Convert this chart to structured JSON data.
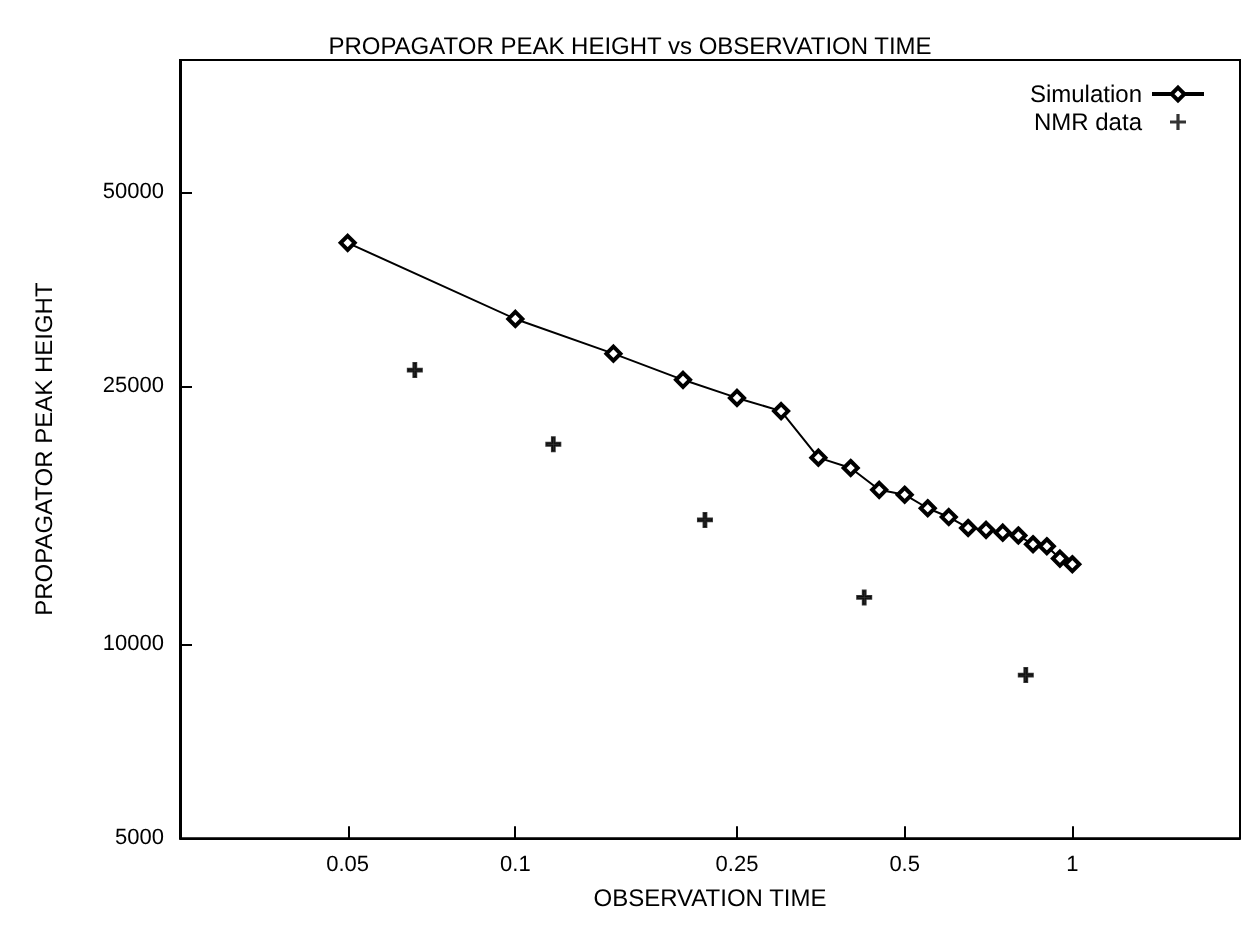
{
  "chart_data": {
    "type": "line",
    "title": "PROPAGATOR PEAK HEIGHT vs OBSERVATION TIME",
    "xlabel": "OBSERVATION TIME",
    "ylabel": "PROPAGATOR PEAK HEIGHT",
    "log": "xy",
    "xlim": [
      0.025,
      2
    ],
    "ylim": [
      5000,
      80000
    ],
    "xticks": [
      0.05,
      0.1,
      0.25,
      0.5,
      1
    ],
    "yticks": [
      5000,
      10000,
      25000,
      50000
    ],
    "grid": false,
    "legend": "top right",
    "series": [
      {
        "name": "Simulation",
        "color": "#000000",
        "marker": "diamond",
        "line_style": "solid",
        "x": [
          0.05,
          0.1,
          0.15,
          0.2,
          0.25,
          0.3,
          0.35,
          0.4,
          0.45,
          0.5,
          0.55,
          0.6,
          0.65,
          0.7,
          0.75,
          0.8,
          0.85,
          0.9,
          0.95,
          1.0
        ],
        "values": [
          41700,
          31800,
          28100,
          25600,
          24000,
          22900,
          19400,
          18700,
          17300,
          17000,
          16200,
          15700,
          15100,
          15000,
          14850,
          14700,
          14250,
          14150,
          13540,
          13270
        ]
      },
      {
        "name": "NMR data",
        "type": "scatter",
        "color": "#000000",
        "marker": "cross",
        "x": [
          0.066,
          0.117,
          0.219,
          0.423,
          0.825
        ],
        "values": [
          26500,
          20350,
          15540,
          11790,
          8940
        ]
      }
    ]
  }
}
